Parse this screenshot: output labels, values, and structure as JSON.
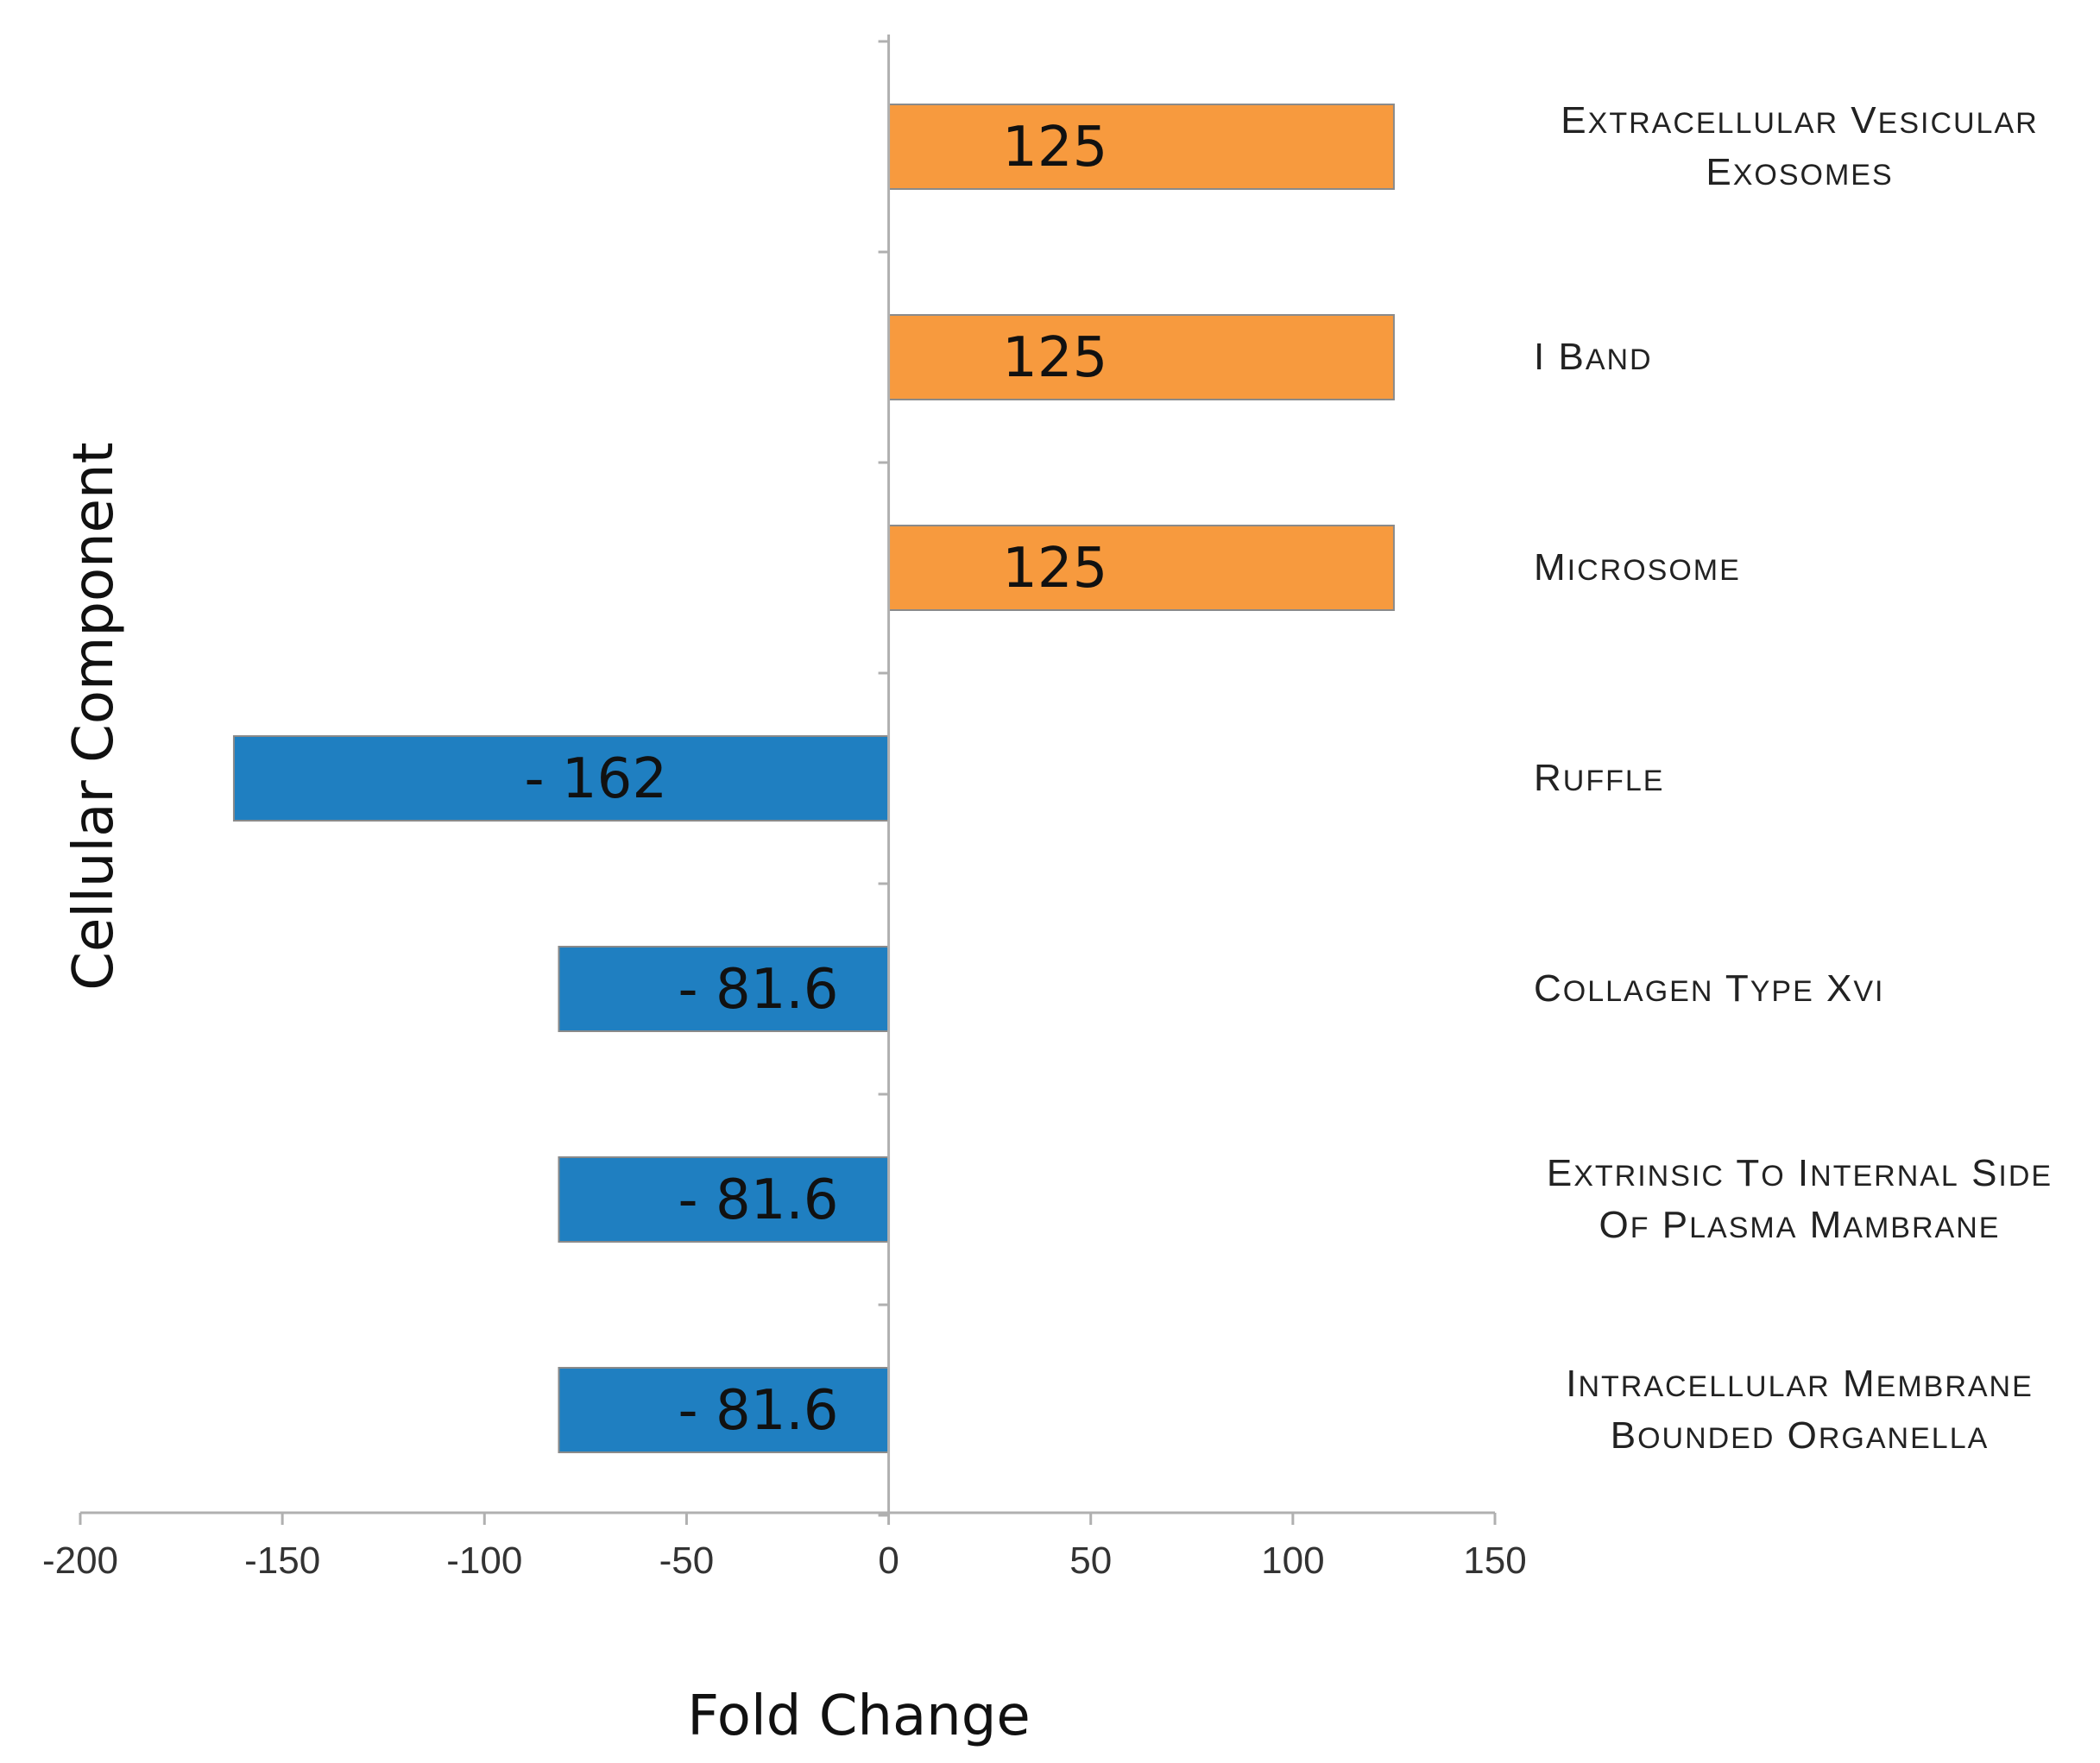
{
  "chart_data": {
    "type": "bar",
    "orientation": "horizontal",
    "categories": [
      "Extracellular vesicular exosomes",
      "I band",
      "Microsome",
      "Ruffle",
      "Collagen type XVI",
      "Extrinsic to internal side of plasma mambrane",
      "Intracellular membrane bounded organella"
    ],
    "values": [
      125,
      125,
      125,
      -162,
      -81.6,
      -81.6,
      -81.6
    ],
    "data_labels": [
      "125",
      "125",
      "125",
      "- 162",
      "- 81.6",
      "- 81.6",
      "- 81.6"
    ],
    "xlabel": "Fold Change",
    "ylabel": "Cellular Component",
    "xlim": [
      -200,
      150
    ],
    "xticks": [
      "-200",
      "-150",
      "-100",
      "-50",
      "0",
      "50",
      "100",
      "150"
    ],
    "grid": false,
    "legend": "none",
    "colors": {
      "positive": "#f79a3e",
      "negative": "#1f7fc1",
      "bar_edge": "#8a8a8a",
      "axis": "#b0b0b0"
    }
  }
}
